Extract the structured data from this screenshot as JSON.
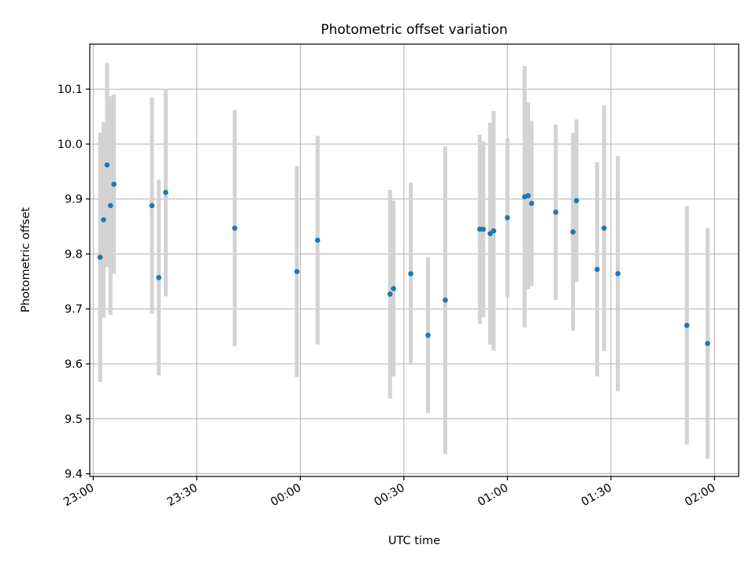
{
  "chart_data": {
    "type": "scatter",
    "title": "Photometric offset variation",
    "xlabel": "UTC time",
    "ylabel": "Photometric offset",
    "x_unit": "UTC time (HH:MM)",
    "xlim": [
      "22:59",
      "02:07"
    ],
    "ylim": [
      9.395,
      10.182
    ],
    "x_ticks": [
      "23:00",
      "23:30",
      "00:00",
      "00:30",
      "01:00",
      "01:30",
      "02:00"
    ],
    "y_ticks": [
      "9.4",
      "9.5",
      "9.6",
      "9.7",
      "9.8",
      "9.9",
      "10.0",
      "10.1"
    ],
    "grid": true,
    "legend": "none",
    "colors": {
      "points": "#1f77b4",
      "error_bars": "#d3d3d3",
      "grid": "#b0b0b0"
    },
    "points": [
      {
        "time": "23:02",
        "y": 9.794,
        "yerr": 0.227
      },
      {
        "time": "23:03",
        "y": 9.862,
        "yerr": 0.178
      },
      {
        "time": "23:04",
        "y": 9.962,
        "yerr": 0.186
      },
      {
        "time": "23:05",
        "y": 9.888,
        "yerr": 0.199
      },
      {
        "time": "23:06",
        "y": 9.927,
        "yerr": 0.163
      },
      {
        "time": "23:17",
        "y": 9.888,
        "yerr": 0.197
      },
      {
        "time": "23:19",
        "y": 9.757,
        "yerr": 0.178
      },
      {
        "time": "23:21",
        "y": 9.912,
        "yerr": 0.189
      },
      {
        "time": "23:41",
        "y": 9.847,
        "yerr": 0.215
      },
      {
        "time": "23:59",
        "y": 9.768,
        "yerr": 0.192
      },
      {
        "time": "00:05",
        "y": 9.825,
        "yerr": 0.19
      },
      {
        "time": "00:26",
        "y": 9.727,
        "yerr": 0.19
      },
      {
        "time": "00:27",
        "y": 9.737,
        "yerr": 0.16
      },
      {
        "time": "00:32",
        "y": 9.764,
        "yerr": 0.166
      },
      {
        "time": "00:37",
        "y": 9.652,
        "yerr": 0.142
      },
      {
        "time": "00:42",
        "y": 9.716,
        "yerr": 0.28
      },
      {
        "time": "00:52",
        "y": 9.845,
        "yerr": 0.172
      },
      {
        "time": "00:53",
        "y": 9.845,
        "yerr": 0.16
      },
      {
        "time": "00:55",
        "y": 9.837,
        "yerr": 0.202
      },
      {
        "time": "00:56",
        "y": 9.842,
        "yerr": 0.218
      },
      {
        "time": "01:00",
        "y": 9.866,
        "yerr": 0.145
      },
      {
        "time": "01:05",
        "y": 9.904,
        "yerr": 0.238
      },
      {
        "time": "01:06",
        "y": 9.906,
        "yerr": 0.17
      },
      {
        "time": "01:07",
        "y": 9.892,
        "yerr": 0.15
      },
      {
        "time": "01:14",
        "y": 9.876,
        "yerr": 0.16
      },
      {
        "time": "01:19",
        "y": 9.84,
        "yerr": 0.18
      },
      {
        "time": "01:20",
        "y": 9.897,
        "yerr": 0.148
      },
      {
        "time": "01:26",
        "y": 9.772,
        "yerr": 0.195
      },
      {
        "time": "01:28",
        "y": 9.847,
        "yerr": 0.224
      },
      {
        "time": "01:32",
        "y": 9.764,
        "yerr": 0.214
      },
      {
        "time": "01:52",
        "y": 9.67,
        "yerr": 0.217
      },
      {
        "time": "01:58",
        "y": 9.637,
        "yerr": 0.21
      }
    ]
  }
}
